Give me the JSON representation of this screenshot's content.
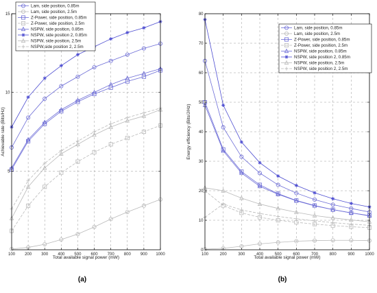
{
  "chart_data": [
    {
      "type": "line",
      "caption": "(a)",
      "xlabel": "Total available signal power (mW)",
      "ylabel": "Achievable rate (Bits/Hz)",
      "x": [
        100,
        200,
        300,
        400,
        500,
        600,
        700,
        800,
        900,
        1000
      ],
      "xlim": [
        100,
        1000
      ],
      "ylim": [
        0,
        15
      ],
      "xticks": [
        "100",
        "200",
        "300",
        "400",
        "500",
        "600",
        "700",
        "800",
        "900",
        "1000"
      ],
      "yticks": [
        "5",
        "10",
        "15"
      ],
      "grid": true,
      "legend_position": "top-left",
      "series": [
        {
          "name": "Lam, side position, 0.85m",
          "color": "#6b6bd6",
          "dash": "none",
          "marker": "circle",
          "values": [
            6.5,
            8.4,
            9.6,
            10.4,
            11.0,
            11.6,
            12.0,
            12.4,
            12.8,
            13.1
          ]
        },
        {
          "name": "Lam, side position, 2.5m",
          "color": "#b9b9b9",
          "dash": "none",
          "marker": "circle",
          "values": [
            0.05,
            0.15,
            0.35,
            0.65,
            1.0,
            1.45,
            1.95,
            2.4,
            2.8,
            3.2
          ]
        },
        {
          "name": "Z-Power, side position, 0.85m",
          "color": "#6b6bd6",
          "dash": "none",
          "marker": "square",
          "values": [
            5.1,
            6.9,
            8.0,
            8.8,
            9.4,
            9.9,
            10.3,
            10.7,
            11.0,
            11.4
          ]
        },
        {
          "name": "Z-Power, side position, 2.5m",
          "color": "#b9b9b9",
          "dash": "dash",
          "marker": "square",
          "values": [
            1.2,
            2.8,
            4.0,
            4.9,
            5.6,
            6.2,
            6.7,
            7.1,
            7.5,
            7.9
          ]
        },
        {
          "name": "NSPW, side position, 0.85m",
          "color": "#6b6bd6",
          "dash": "none",
          "marker": "triangle",
          "values": [
            5.2,
            7.0,
            8.1,
            8.9,
            9.5,
            10.0,
            10.5,
            10.9,
            11.2,
            11.5
          ]
        },
        {
          "name": "NSPW, side position 2, 0.85m",
          "color": "#4b4bd0",
          "dash": "none",
          "marker": "star",
          "values": [
            7.8,
            9.7,
            10.9,
            11.7,
            12.4,
            12.9,
            13.4,
            13.8,
            14.1,
            14.5
          ]
        },
        {
          "name": "NSPW, side position, 2.5m",
          "color": "#b9b9b9",
          "dash": "none",
          "marker": "triangle",
          "values": [
            2.0,
            4.0,
            5.2,
            6.1,
            6.7,
            7.3,
            7.8,
            8.2,
            8.5,
            8.9
          ]
        },
        {
          "name": "NSPW,side position 2, 2.5m",
          "color": "#b9b9b9",
          "dash": "dash",
          "marker": "plus",
          "values": [
            2.6,
            4.4,
            5.5,
            6.3,
            6.9,
            7.5,
            8.0,
            8.4,
            8.7,
            9.0
          ]
        }
      ]
    },
    {
      "type": "line",
      "caption": "(b)",
      "xlabel": "Total available signal power (mW)",
      "ylabel": "Energy efficiency (Bits/J/Hz)",
      "x": [
        100,
        200,
        300,
        400,
        500,
        600,
        700,
        800,
        900,
        1000
      ],
      "xlim": [
        100,
        1000
      ],
      "ylim": [
        0,
        80
      ],
      "xticks": [
        "100",
        "200",
        "300",
        "400",
        "500",
        "600",
        "700",
        "800",
        "900",
        "1000"
      ],
      "yticks": [
        "0",
        "10",
        "20",
        "30",
        "40",
        "50",
        "60",
        "70",
        "80"
      ],
      "grid": true,
      "legend_position": "top-right",
      "series": [
        {
          "name": "Lam, side position, 0.85m",
          "color": "#6b6bd6",
          "dash": "none",
          "marker": "circle",
          "values": [
            64,
            41.5,
            31.5,
            26,
            22,
            19.2,
            17.0,
            15.3,
            14.0,
            12.8
          ]
        },
        {
          "name": "Lam, side position, 2.5m",
          "color": "#b9b9b9",
          "dash": "none",
          "marker": "circle",
          "values": [
            0.2,
            0.5,
            1.2,
            2.0,
            2.5,
            2.9,
            3.1,
            3.2,
            3.2,
            3.1
          ]
        },
        {
          "name": "Z-Power, side position, 0.85m",
          "color": "#6b6bd6",
          "dash": "none",
          "marker": "square",
          "values": [
            50,
            34,
            26.5,
            22,
            19,
            16.7,
            15.0,
            13.6,
            12.5,
            11.6
          ]
        },
        {
          "name": "Z-Power, side position,  2.5m",
          "color": "#b9b9b9",
          "dash": "dash",
          "marker": "square",
          "values": [
            20,
            15,
            12.5,
            11,
            10,
            9.3,
            8.7,
            8.2,
            7.8,
            7.5
          ]
        },
        {
          "name": "NSPW, side position, 0.85m",
          "color": "#6b6bd6",
          "dash": "none",
          "marker": "triangle",
          "values": [
            49,
            33.5,
            26,
            21.5,
            18.8,
            16.6,
            14.9,
            13.6,
            12.5,
            11.5
          ]
        },
        {
          "name": "NSPW, side position 2, 0.85m",
          "color": "#4b4bd0",
          "dash": "none",
          "marker": "star",
          "values": [
            78,
            49,
            36.5,
            29.5,
            25,
            21.8,
            19.3,
            17.3,
            15.7,
            14.5
          ]
        },
        {
          "name": "NSPW, side position,  2.5m",
          "color": "#b9b9b9",
          "dash": "none",
          "marker": "triangle",
          "values": [
            21,
            20,
            17.5,
            15.5,
            14,
            12.7,
            11.6,
            10.8,
            10.1,
            9.5
          ]
        },
        {
          "name": "NSPW, side position 2, 2.5m",
          "color": "#b9b9b9",
          "dash": "dash",
          "marker": "plus",
          "values": [
            11,
            15.5,
            13.5,
            12.3,
            11.3,
            10.5,
            9.8,
            9.2,
            8.7,
            8.3
          ]
        }
      ]
    }
  ]
}
